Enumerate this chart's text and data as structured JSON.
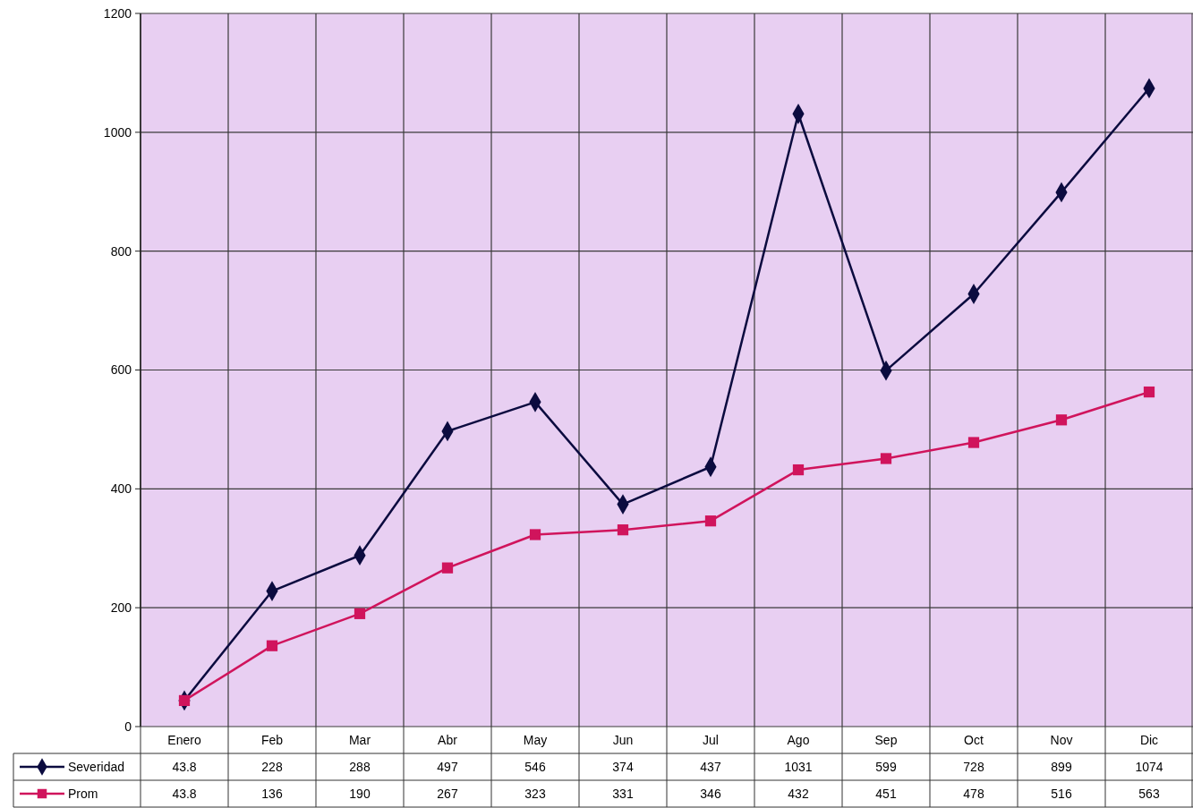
{
  "chart_data": {
    "type": "line",
    "categories": [
      "Enero",
      "Feb",
      "Mar",
      "Abr",
      "May",
      "Jun",
      "Jul",
      "Ago",
      "Sep",
      "Oct",
      "Nov",
      "Dic"
    ],
    "series": [
      {
        "name": "Severidad",
        "color": "#0b0b3f",
        "marker": "diamond",
        "values": [
          43.8,
          228,
          288,
          497,
          546,
          374,
          437,
          1031,
          599,
          728,
          899,
          1074
        ]
      },
      {
        "name": "Prom",
        "color": "#d0145c",
        "marker": "square",
        "values": [
          43.8,
          136,
          190,
          267,
          323,
          331,
          346,
          432,
          451,
          478,
          516,
          563
        ]
      }
    ],
    "ylim": [
      0,
      1200
    ],
    "yticks": [
      0,
      200,
      400,
      600,
      800,
      1000,
      1200
    ],
    "grid": true,
    "legend": "bottom",
    "data_labels": true
  }
}
